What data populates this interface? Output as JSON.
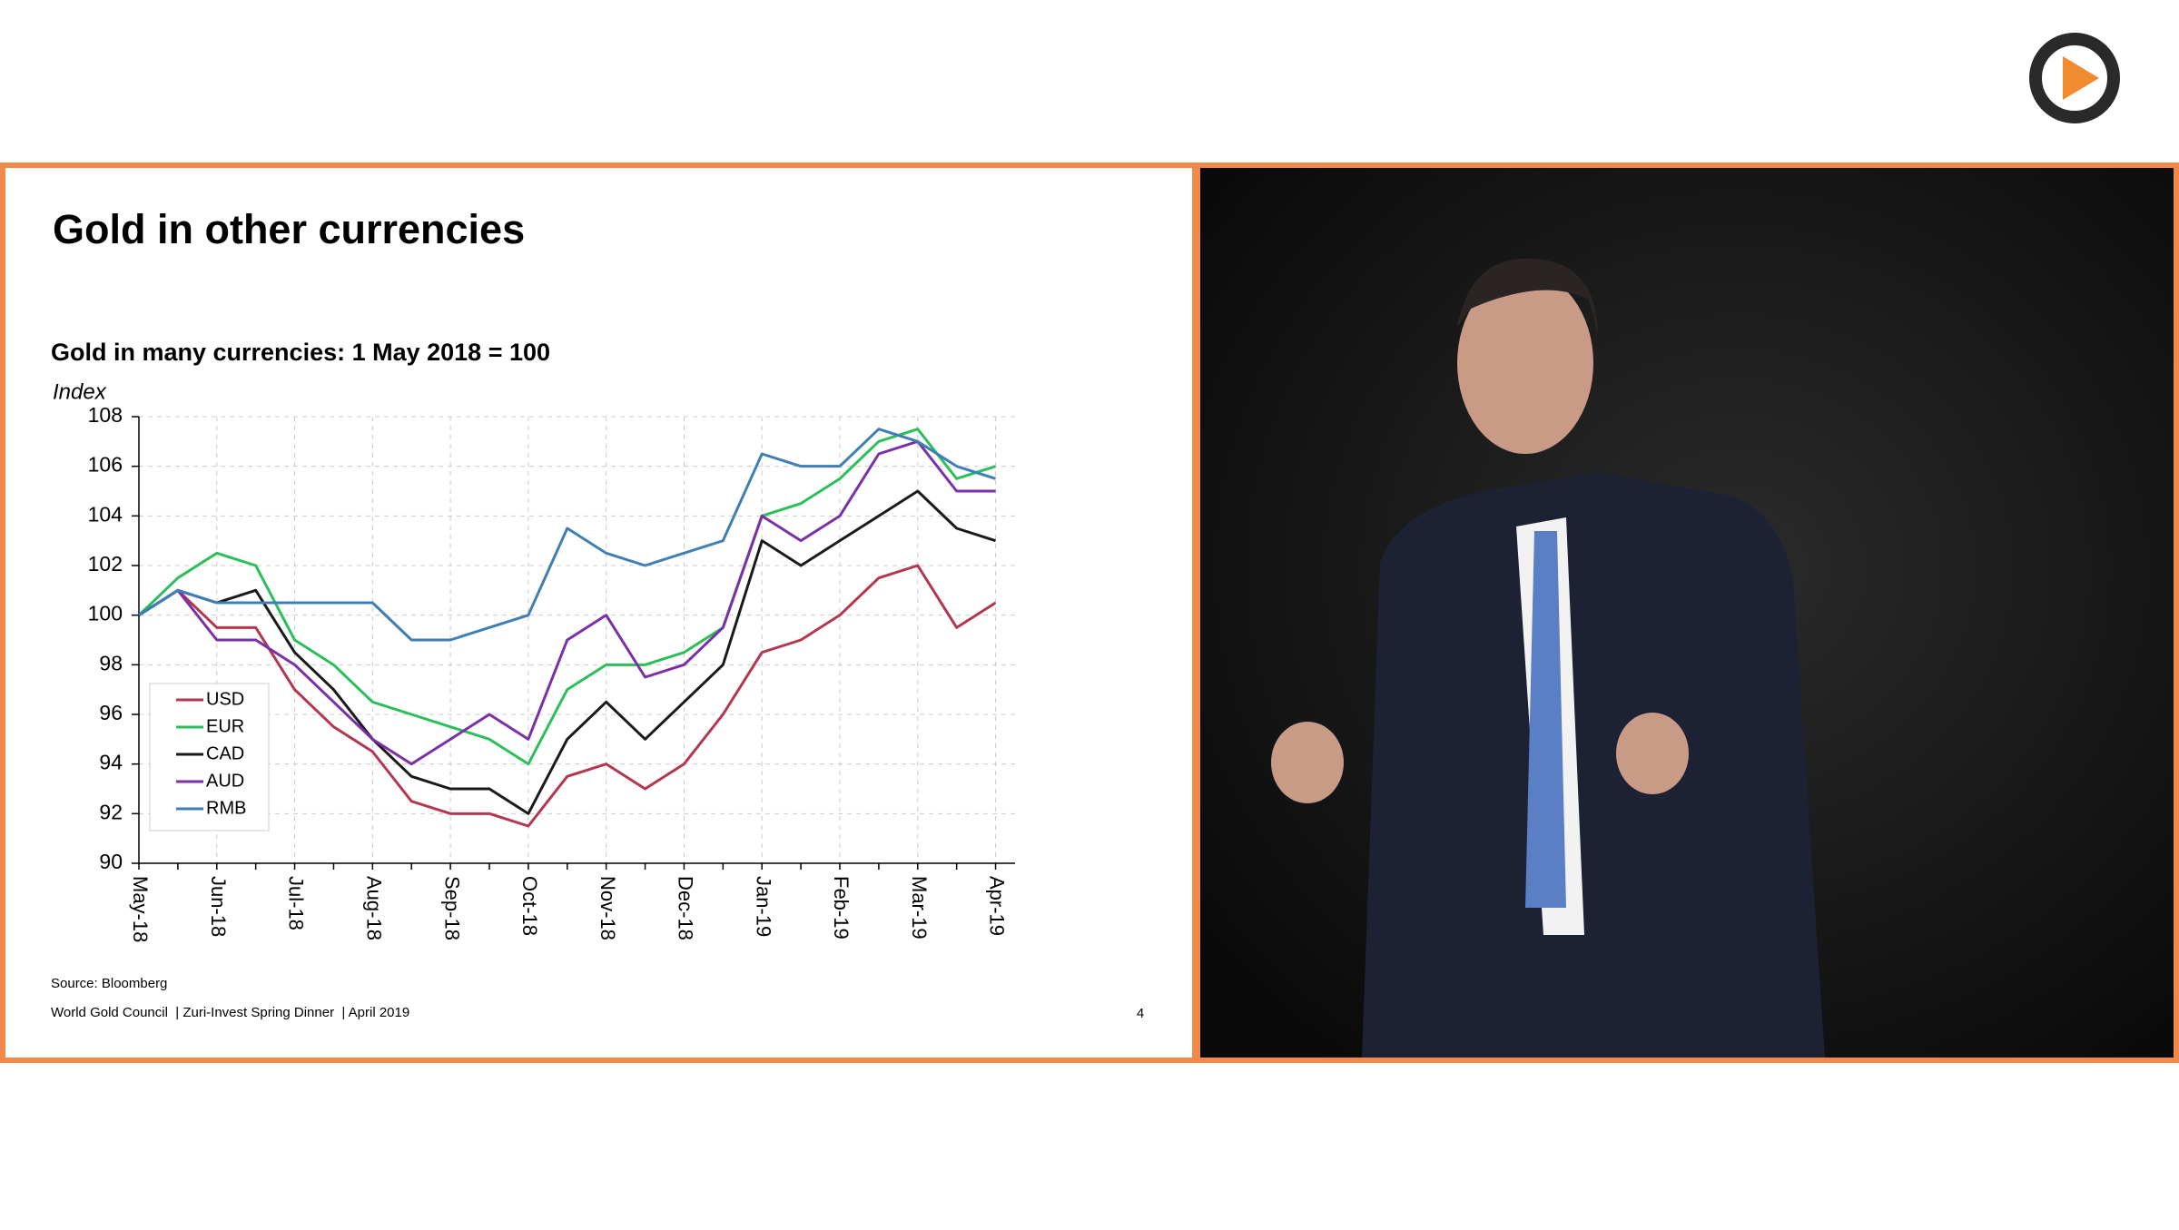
{
  "slide": {
    "title": "Gold in other currencies",
    "source": "Source: Bloomberg",
    "footer": "World Gold Council  | Zuri-Invest Spring Dinner  | April 2019",
    "page_number": "4"
  },
  "chart_data": {
    "type": "line",
    "title": "Gold in many currencies: 1 May 2018 = 100",
    "y_label": "Index",
    "categories": [
      "May-18",
      null,
      "Jun-18",
      null,
      "Jul-18",
      null,
      "Aug-18",
      null,
      "Sep-18",
      null,
      "Oct-18",
      null,
      "Nov-18",
      null,
      "Dec-18",
      null,
      "Jan-19",
      null,
      "Feb-19",
      null,
      "Mar-19",
      null,
      "Apr-19"
    ],
    "series": [
      {
        "name": "USD",
        "color": "#b5364f",
        "values": [
          100,
          101,
          99.5,
          99.5,
          97,
          95.5,
          94.5,
          92.5,
          92,
          92,
          91.5,
          93.5,
          94,
          93,
          94,
          96,
          98.5,
          99,
          100,
          101.5,
          102,
          99.5,
          100.5
        ]
      },
      {
        "name": "EUR",
        "color": "#2bbf5a",
        "values": [
          100,
          101.5,
          102.5,
          102,
          99,
          98,
          96.5,
          96,
          95.5,
          95,
          94,
          97,
          98,
          98,
          98.5,
          99.5,
          104,
          104.5,
          105.5,
          107,
          107.5,
          105.5,
          106
        ]
      },
      {
        "name": "CAD",
        "color": "#1a1a1a",
        "values": [
          100,
          101,
          100.5,
          101,
          98.5,
          97,
          95,
          93.5,
          93,
          93,
          92,
          95,
          96.5,
          95,
          96.5,
          98,
          103,
          102,
          103,
          104,
          105,
          103.5,
          103
        ]
      },
      {
        "name": "AUD",
        "color": "#7b2fa8",
        "values": [
          100,
          101,
          99,
          99,
          98,
          96.5,
          95,
          94,
          95,
          96,
          95,
          99,
          100,
          97.5,
          98,
          99.5,
          104,
          103,
          104,
          106.5,
          107,
          105,
          105
        ]
      },
      {
        "name": "RMB",
        "color": "#3f7fb5",
        "values": [
          100,
          101,
          100.5,
          100.5,
          100.5,
          100.5,
          100.5,
          99,
          99,
          99.5,
          100,
          103.5,
          102.5,
          102,
          102.5,
          103,
          106.5,
          106,
          106,
          107.5,
          107,
          106,
          105.5
        ]
      }
    ],
    "ylim": [
      90,
      108
    ],
    "yticks": [
      90,
      92,
      94,
      96,
      98,
      100,
      102,
      104,
      106,
      108
    ],
    "grid": true,
    "legend": "lower left"
  }
}
